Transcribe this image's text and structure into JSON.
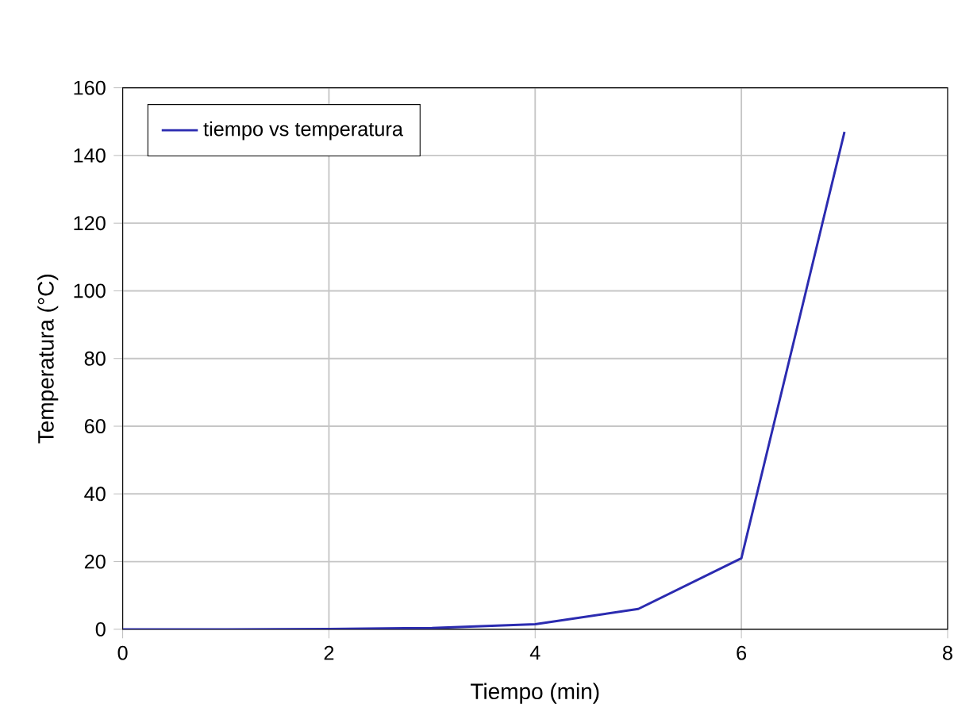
{
  "chart_data": {
    "type": "line",
    "xlabel": "Tiempo (min)",
    "ylabel": "Temperatura (°C)",
    "x": [
      0,
      1,
      2,
      3,
      4,
      5,
      6,
      7
    ],
    "series": [
      {
        "name": "tiempo vs temperatura",
        "color": "#2b2bb0",
        "values": [
          0,
          0,
          0.1,
          0.4,
          1.5,
          6,
          21,
          147
        ]
      }
    ],
    "xlim": [
      0,
      8
    ],
    "ylim": [
      0,
      160
    ],
    "xticks": [
      0,
      2,
      4,
      6,
      8
    ],
    "yticks": [
      0,
      20,
      40,
      60,
      80,
      100,
      120,
      140,
      160
    ],
    "grid": true,
    "legend": "top left",
    "marker": "none",
    "line_style": "solid"
  }
}
